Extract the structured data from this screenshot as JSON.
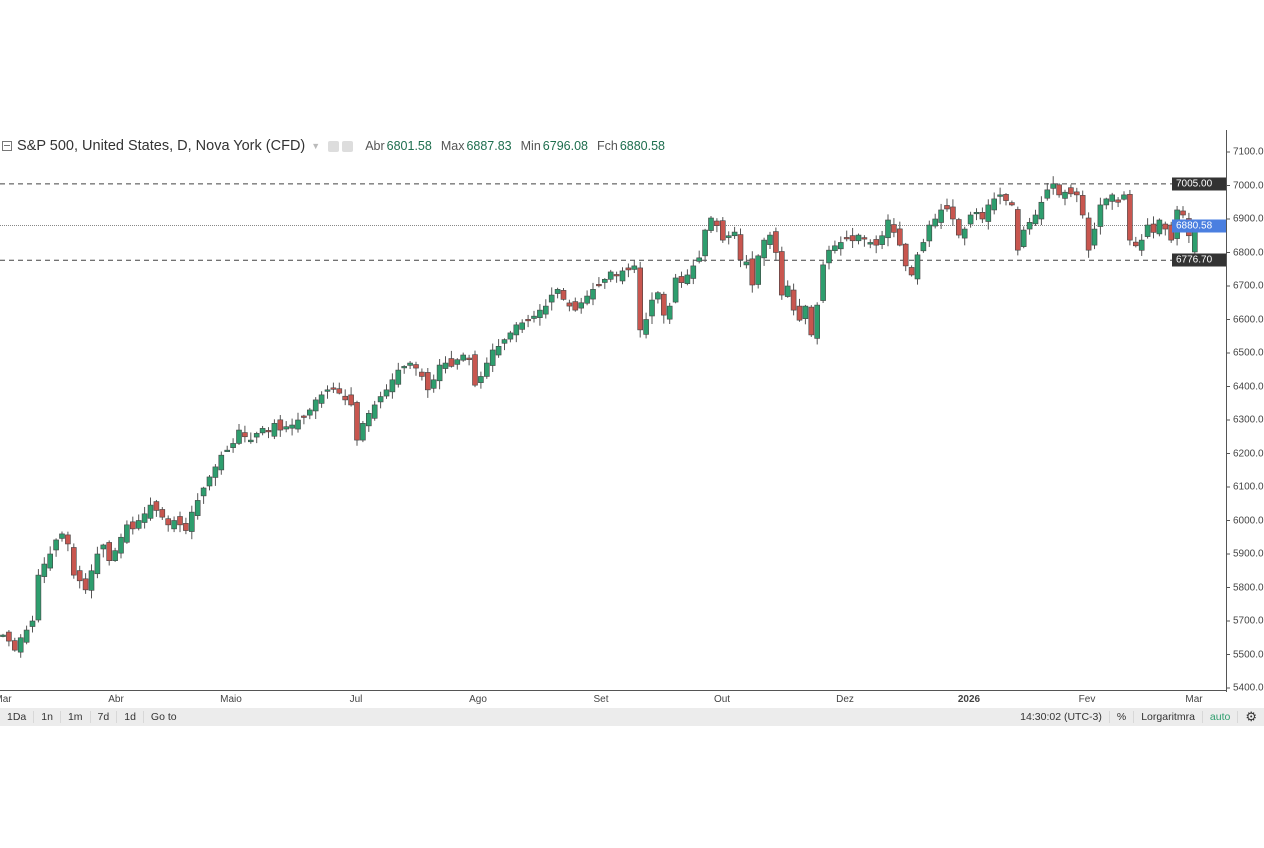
{
  "legend": {
    "title": "S&P 500, United States, D, Nova York (CFD)",
    "open_label": "Abr",
    "open": "6801.58",
    "high_label": "Max",
    "high": "6887.83",
    "low_label": "Min",
    "low": "6796.08",
    "close_label": "Fch",
    "close": "6880.58"
  },
  "toolbar": {
    "ranges": [
      "1Da",
      "1n",
      "1m",
      "7d",
      "1d"
    ],
    "goto": "Go to",
    "time": "14:30:02 (UTC-3)",
    "percent": "%",
    "log": "Lorgaritmra",
    "auto": "auto",
    "settings_icon": "gear-icon"
  },
  "colors": {
    "up": "#2e9e6e",
    "down": "#c8564f",
    "wick": "#555555",
    "last_price": "#4a7fe0",
    "level": "#333333"
  },
  "chart_data": {
    "type": "candlestick",
    "title": "S&P 500, United States, D, Nova York (CFD)",
    "x_tick_labels": [
      "Mar",
      "Abr",
      "Maio",
      "Jul",
      "Ago",
      "Set",
      "Out",
      "Dez",
      "2026",
      "Fev",
      "Mar"
    ],
    "y_tick_labels": [
      "7100.00",
      "7000.00",
      "6900.00",
      "6800.00",
      "6700.00",
      "6600.00",
      "6500.00",
      "6400.00",
      "6300.00",
      "6200.00",
      "6100.00",
      "6000.00",
      "5900.00",
      "5800.00",
      "5700.00",
      "5500.00",
      "5400.00"
    ],
    "ylim": [
      5500,
      7100
    ],
    "price_tags": {
      "resistance": "7005.00",
      "last": "6880.58",
      "support": "6776.70"
    },
    "levels": {
      "resistance": 7005.0,
      "last": 6880.58,
      "support": 6776.7
    },
    "last_candle": {
      "open": 6801.58,
      "high": 6887.83,
      "low": 6796.08,
      "close": 6880.58
    },
    "closes": [
      5658,
      5640,
      5613,
      5650,
      5673,
      5700,
      5837,
      5870,
      5900,
      5942,
      5960,
      5930,
      5837,
      5820,
      5793,
      5850,
      5900,
      5927,
      5880,
      5910,
      5950,
      5987,
      5975,
      6000,
      6020,
      6046,
      6030,
      6010,
      5987,
      6000,
      5987,
      5970,
      6025,
      6060,
      6097,
      6130,
      6160,
      6195,
      6210,
      6230,
      6270,
      6250,
      6240,
      6260,
      6275,
      6265,
      6290,
      6270,
      6280,
      6285,
      6300,
      6310,
      6330,
      6360,
      6375,
      6390,
      6395,
      6380,
      6360,
      6345,
      6240,
      6290,
      6320,
      6345,
      6370,
      6390,
      6420,
      6449,
      6460,
      6470,
      6455,
      6430,
      6390,
      6420,
      6464,
      6470,
      6460,
      6480,
      6494,
      6480,
      6404,
      6430,
      6470,
      6509,
      6520,
      6540,
      6560,
      6584,
      6590,
      6600,
      6610,
      6628,
      6640,
      6673,
      6690,
      6660,
      6640,
      6628,
      6650,
      6670,
      6690,
      6703,
      6720,
      6742,
      6730,
      6745,
      6748,
      6760,
      6569,
      6600,
      6658,
      6680,
      6613,
      6640,
      6724,
      6710,
      6733,
      6760,
      6784,
      6867,
      6903,
      6880,
      6837,
      6850,
      6861,
      6778,
      6772,
      6703,
      6790,
      6837,
      6852,
      6800,
      6673,
      6700,
      6628,
      6598,
      6640,
      6554,
      6643,
      6763,
      6807,
      6820,
      6830,
      6843,
      6835,
      6852,
      6840,
      6830,
      6822,
      6850,
      6897,
      6860,
      6822,
      6760,
      6733,
      6793,
      6830,
      6882,
      6900,
      6927,
      6930,
      6900,
      6852,
      6870,
      6912,
      6920,
      6900,
      6942,
      6960,
      6972,
      6955,
      6942,
      6807,
      6867,
      6890,
      6912,
      6950,
      6987,
      7005,
      6972,
      6980,
      6975,
      6972,
      6912,
      6807,
      6870,
      6942,
      6960,
      6972,
      6950,
      6972,
      6837,
      6820,
      6837,
      6882,
      6860,
      6897,
      6870,
      6837,
      6927,
      6912,
      6850,
      6880.58
    ]
  }
}
